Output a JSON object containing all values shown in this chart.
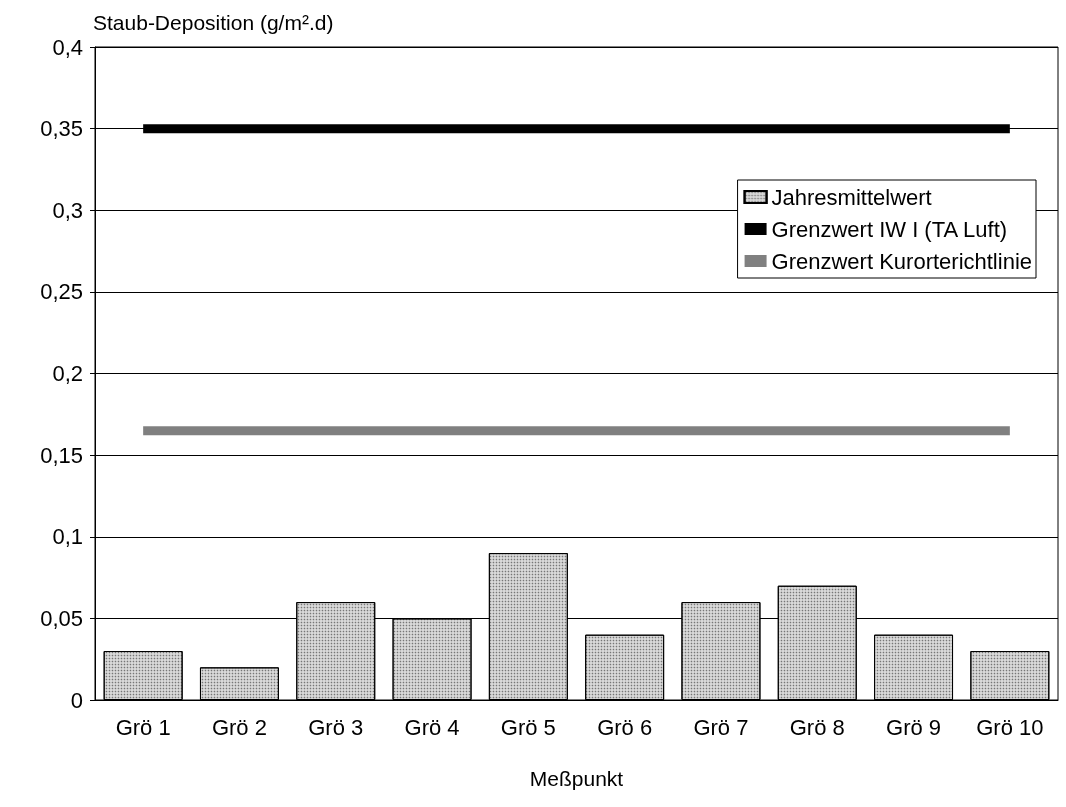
{
  "chart_data": {
    "type": "bar",
    "ylabel": "Staub-Deposition (g/m².d)",
    "xlabel": "Meßpunkt",
    "categories": [
      "Grö 1",
      "Grö 2",
      "Grö 3",
      "Grö 4",
      "Grö 5",
      "Grö 6",
      "Grö 7",
      "Grö 8",
      "Grö 9",
      "Grö 10"
    ],
    "series": [
      {
        "name": "Jahresmittelwert",
        "color": "#d9d9d9",
        "values": [
          0.03,
          0.02,
          0.06,
          0.05,
          0.09,
          0.04,
          0.06,
          0.07,
          0.04,
          0.03
        ]
      },
      {
        "name": "Grenzwert IW I (TA Luft)",
        "type": "line",
        "color": "#000000",
        "values": [
          0.35,
          0.35,
          0.35,
          0.35,
          0.35,
          0.35,
          0.35,
          0.35,
          0.35,
          0.35
        ]
      },
      {
        "name": "Grenzwert Kurorterichtlinie",
        "type": "line",
        "color": "#808080",
        "values": [
          0.165,
          0.165,
          0.165,
          0.165,
          0.165,
          0.165,
          0.165,
          0.165,
          0.165,
          0.165
        ]
      }
    ],
    "ylim": [
      0,
      0.4
    ],
    "yticks": [
      0,
      {
        "value": 0.05,
        "label": "0,05"
      },
      {
        "value": 0.1,
        "label": "0,1"
      },
      {
        "value": 0.15,
        "label": "0,15"
      },
      {
        "value": 0.2,
        "label": "0,2"
      },
      {
        "value": 0.25,
        "label": "0,25"
      },
      {
        "value": 0.3,
        "label": "0,3"
      },
      {
        "value": 0.35,
        "label": "0,35"
      },
      {
        "value": 0.4,
        "label": "0,4"
      }
    ],
    "grid": "y",
    "legend": "top right",
    "marker": "none",
    "line_style": "solid"
  }
}
